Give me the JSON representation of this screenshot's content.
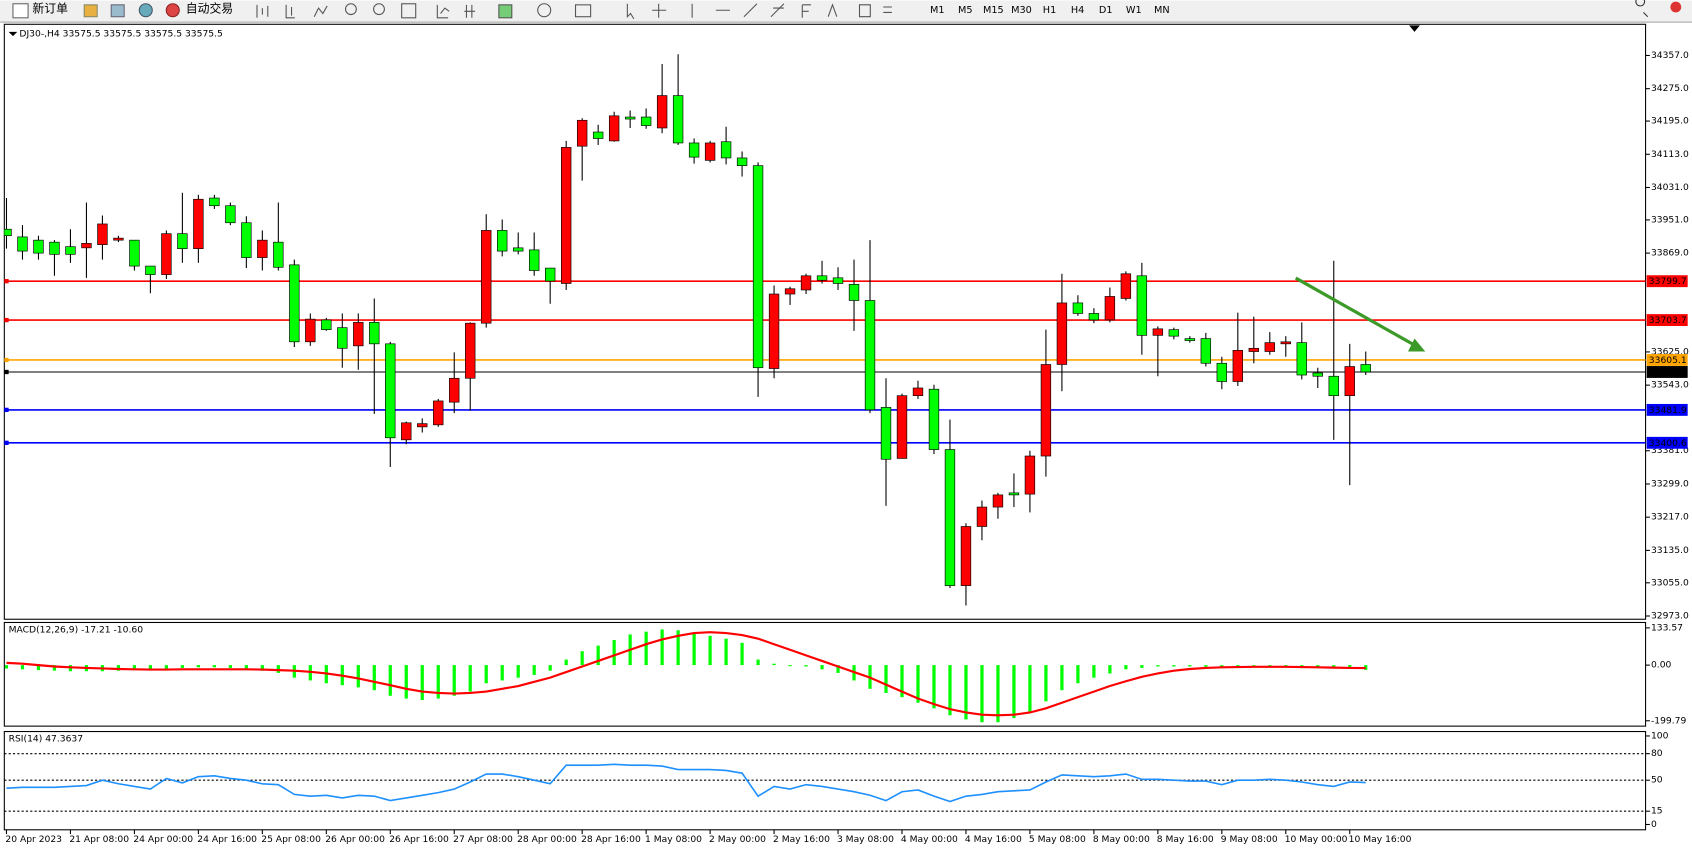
{
  "toolbar": {
    "new_order": "新订单",
    "auto_trading": "自动交易",
    "timeframes": [
      "M1",
      "M5",
      "M15",
      "M30",
      "H1",
      "H4",
      "D1",
      "W1",
      "MN"
    ]
  },
  "chart_data": [
    {
      "type": "candlestick",
      "title": "DJ30-,H4  33575.5 33575.5 33575.5 33575.5",
      "up_color": "#ff0000",
      "down_color": "#00ff00",
      "categories": [
        "20 Apr 2023",
        null,
        null,
        null,
        "21 Apr 08:00",
        null,
        null,
        null,
        "24 Apr 00:00",
        null,
        null,
        null,
        "24 Apr 16:00",
        null,
        null,
        null,
        "25 Apr 08:00",
        null,
        null,
        null,
        "26 Apr 00:00",
        null,
        null,
        null,
        "26 Apr 16:00",
        null,
        null,
        null,
        "27 Apr 08:00",
        null,
        null,
        null,
        "28 Apr 00:00",
        null,
        null,
        null,
        "28 Apr 16:00",
        null,
        null,
        null,
        "1 May 08:00",
        null,
        null,
        null,
        "2 May 00:00",
        null,
        null,
        null,
        "2 May 16:00",
        null,
        null,
        null,
        "3 May 08:00",
        null,
        null,
        null,
        "4 May 00:00",
        null,
        null,
        null,
        "4 May 16:00",
        null,
        null,
        null,
        "5 May 08:00",
        null,
        null,
        null,
        "8 May 00:00",
        null,
        null,
        null,
        "8 May 16:00",
        null,
        null,
        null,
        "9 May 08:00",
        null,
        null,
        null,
        "10 May 00:00",
        null,
        null,
        null,
        "10 May 16:00",
        null
      ],
      "open": [
        33928,
        33909,
        33901,
        33896,
        33885,
        33882,
        33890,
        33901,
        33901,
        33837,
        33816,
        33917,
        33880,
        34005,
        33986,
        33944,
        33858,
        33896,
        33840,
        33650,
        33704,
        33685,
        33640,
        33698,
        33645,
        33408,
        33440,
        33445,
        33501,
        33560,
        33696,
        33925,
        33882,
        33877,
        33832,
        33794,
        34133,
        34168,
        34146,
        34205,
        34205,
        34178,
        34258,
        34141,
        34098,
        34144,
        34104,
        34085,
        33584,
        33768,
        33778,
        33813,
        33808,
        33792,
        33752,
        33488,
        33362,
        33517,
        33533,
        33384,
        33048,
        33194,
        33242,
        33277,
        33274,
        33368,
        33594,
        33746,
        33720,
        33704,
        33757,
        33813,
        33666,
        33680,
        33658,
        33658,
        33597,
        33552,
        33626,
        33626,
        33645,
        33648,
        33573,
        33565,
        33517,
        33594
      ],
      "high": [
        34005,
        33938,
        33912,
        33901,
        33928,
        33994,
        33962,
        33912,
        33901,
        33837,
        33925,
        34018,
        34013,
        34013,
        33994,
        33960,
        33925,
        33994,
        33853,
        33720,
        33709,
        33720,
        33720,
        33757,
        33650,
        33453,
        33461,
        33509,
        33624,
        33698,
        33965,
        33952,
        33920,
        33920,
        33832,
        34146,
        34202,
        34186,
        34218,
        34221,
        34226,
        34336,
        34360,
        34152,
        34146,
        34181,
        34120,
        34093,
        33789,
        33786,
        33818,
        33850,
        33834,
        33853,
        33901,
        33560,
        33522,
        33554,
        33544,
        33458,
        33202,
        33258,
        33277,
        33325,
        33381,
        33680,
        33818,
        33765,
        33733,
        33784,
        33824,
        33845,
        33688,
        33685,
        33664,
        33672,
        33613,
        33722,
        33712,
        33674,
        33664,
        33698,
        33586,
        33850,
        33645,
        33626
      ],
      "low": [
        33880,
        33853,
        33853,
        33813,
        33845,
        33808,
        33853,
        33896,
        33826,
        33770,
        33805,
        33845,
        33845,
        33978,
        33938,
        33832,
        33826,
        33826,
        33637,
        33640,
        33677,
        33586,
        33581,
        33472,
        33341,
        33397,
        33426,
        33440,
        33474,
        33480,
        33685,
        33861,
        33866,
        33813,
        33744,
        33778,
        34048,
        34136,
        34144,
        34178,
        34176,
        34165,
        34136,
        34090,
        34093,
        34088,
        34058,
        33514,
        33560,
        33741,
        33768,
        33794,
        33778,
        33677,
        33474,
        33245,
        33362,
        33509,
        33373,
        33042,
        32999,
        33160,
        33213,
        33242,
        33229,
        33317,
        33528,
        33714,
        33696,
        33698,
        33752,
        33618,
        33565,
        33656,
        33648,
        33589,
        33533,
        33541,
        33597,
        33618,
        33613,
        33557,
        33536,
        33408,
        33296,
        33568
      ],
      "close": [
        33912,
        33874,
        33869,
        33866,
        33866,
        33893,
        33941,
        33906,
        33837,
        33816,
        33917,
        33880,
        34002,
        33986,
        33944,
        33858,
        33901,
        33834,
        33650,
        33706,
        33680,
        33634,
        33698,
        33645,
        33413,
        33450,
        33448,
        33504,
        33560,
        33696,
        33925,
        33874,
        33874,
        33826,
        33800,
        34130,
        34197,
        34152,
        34208,
        34200,
        34184,
        34258,
        34141,
        34106,
        34141,
        34104,
        34085,
        33586,
        33768,
        33781,
        33813,
        33802,
        33794,
        33752,
        33482,
        33360,
        33517,
        33536,
        33384,
        33048,
        33194,
        33242,
        33272,
        33272,
        33368,
        33594,
        33746,
        33720,
        33704,
        33762,
        33818,
        33666,
        33682,
        33664,
        33653,
        33597,
        33552,
        33629,
        33634,
        33648,
        33650,
        33568,
        33565,
        33517,
        33589,
        33575.5
      ],
      "hlines": [
        {
          "value": 33799.7,
          "color": "#ff0000"
        },
        {
          "value": 33703.7,
          "color": "#ff0000"
        },
        {
          "value": 33605.1,
          "color": "#ffa500"
        },
        {
          "value": 33575.5,
          "color": "#000000"
        },
        {
          "value": 33481.9,
          "color": "#0000ff"
        },
        {
          "value": 33400.6,
          "color": "#0000ff"
        }
      ],
      "ylim": [
        32965,
        34434
      ],
      "yticks": [
        {
          "value": 34357,
          "label": "34357.0"
        },
        {
          "value": 34275,
          "label": "34275.0"
        },
        {
          "value": 34195,
          "label": "34195.0"
        },
        {
          "value": 34113,
          "label": "34113.0"
        },
        {
          "value": 34031,
          "label": "34031.0"
        },
        {
          "value": 33951,
          "label": "33951.0"
        },
        {
          "value": 33869,
          "label": "33869.0"
        },
        {
          "value": 33625,
          "label": "33625.0"
        },
        {
          "value": 33543,
          "label": "33543.0"
        },
        {
          "value": 33381,
          "label": "33381.0"
        },
        {
          "value": 33299,
          "label": "33299.0"
        },
        {
          "value": 33217,
          "label": "33217.0"
        },
        {
          "value": 33135,
          "label": "33135.0"
        },
        {
          "value": 33055,
          "label": "33055.0"
        },
        {
          "value": 32973,
          "label": "32973.0"
        }
      ]
    },
    {
      "type": "macd",
      "title": "MACD(12,26,9) -17.21 -10.60",
      "histogram_color": "#00ff00",
      "signal_color": "#ff0000",
      "histogram": [
        -12,
        -15,
        -18,
        -20,
        -22,
        -22,
        -22,
        -20,
        -18,
        -15,
        -12,
        -10,
        -8,
        -8,
        -10,
        -14,
        -20,
        -28,
        -45,
        -55,
        -65,
        -72,
        -80,
        -90,
        -110,
        -120,
        -125,
        -120,
        -110,
        -95,
        -65,
        -55,
        -45,
        -35,
        -20,
        20,
        50,
        70,
        90,
        110,
        120,
        128,
        125,
        115,
        105,
        95,
        80,
        20,
        5,
        -2,
        -5,
        -15,
        -28,
        -55,
        -85,
        -100,
        -115,
        -135,
        -155,
        -180,
        -195,
        -205,
        -205,
        -190,
        -170,
        -130,
        -90,
        -65,
        -45,
        -30,
        -15,
        -10,
        -5,
        -5,
        -5,
        -6,
        -8,
        -8,
        -7,
        -6,
        -6,
        -7,
        -8,
        -8,
        -8,
        -17.21
      ],
      "signal": [
        8,
        5,
        0,
        -5,
        -8,
        -10,
        -12,
        -14,
        -15,
        -16,
        -16,
        -15,
        -15,
        -15,
        -15,
        -15,
        -16,
        -18,
        -20,
        -24,
        -30,
        -38,
        -48,
        -60,
        -72,
        -85,
        -95,
        -100,
        -102,
        -100,
        -95,
        -85,
        -75,
        -60,
        -45,
        -25,
        -5,
        15,
        35,
        55,
        75,
        92,
        105,
        115,
        118,
        115,
        108,
        95,
        75,
        55,
        35,
        15,
        -5,
        -25,
        -45,
        -70,
        -95,
        -120,
        -140,
        -158,
        -170,
        -178,
        -180,
        -178,
        -170,
        -155,
        -135,
        -115,
        -95,
        -75,
        -58,
        -42,
        -30,
        -20,
        -14,
        -10,
        -8,
        -7,
        -6,
        -6,
        -6,
        -7,
        -8,
        -9,
        -10,
        -10.6
      ],
      "ylim": [
        -219,
        153
      ],
      "yticks": [
        133.57,
        {
          "value": 0,
          "label": "0.00"
        },
        -199.79
      ]
    },
    {
      "type": "line",
      "title": "RSI(14) 47.3637",
      "color": "#1e90ff",
      "values": [
        41,
        42,
        42,
        42,
        43,
        44,
        50,
        46,
        43,
        40,
        52,
        47,
        54,
        55,
        52,
        50,
        46,
        45,
        34,
        32,
        33,
        30,
        33,
        32,
        27,
        30,
        33,
        36,
        40,
        48,
        57,
        57,
        54,
        50,
        46,
        67,
        67,
        67,
        68,
        67,
        67,
        66,
        62,
        62,
        62,
        61,
        58,
        32,
        43,
        40,
        45,
        43,
        40,
        37,
        33,
        27,
        37,
        39,
        32,
        26,
        32,
        34,
        37,
        38,
        39,
        48,
        56,
        55,
        54,
        55,
        57,
        51,
        51,
        50,
        49,
        49,
        45,
        50,
        50,
        51,
        50,
        48,
        45,
        43,
        48,
        47.36
      ],
      "ylim": [
        -6,
        105
      ],
      "yticks": [
        100,
        80,
        50,
        15,
        0
      ],
      "levels": [
        80,
        50,
        15
      ]
    }
  ]
}
